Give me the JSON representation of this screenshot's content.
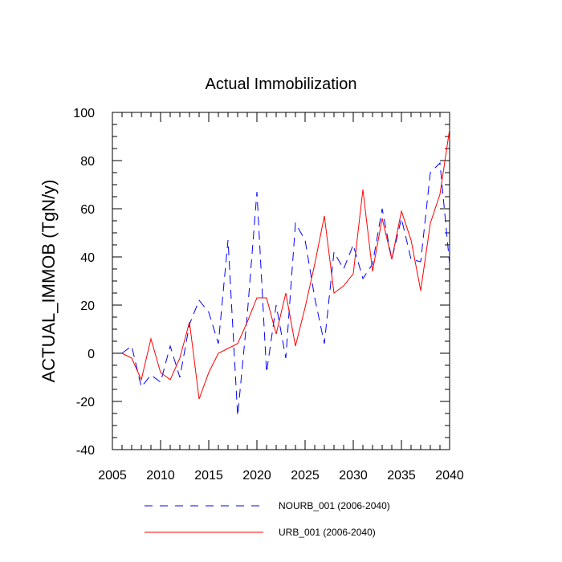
{
  "chart_data": {
    "type": "line",
    "title": "Actual Immobilization",
    "xlabel": "",
    "ylabel": "ACTUAL_IMMOB  (TgN/y)",
    "xlim": [
      2005,
      2040
    ],
    "ylim": [
      -40,
      100
    ],
    "x_ticks": [
      2005,
      2010,
      2015,
      2020,
      2025,
      2030,
      2035,
      2040
    ],
    "y_ticks": [
      -40,
      -20,
      0,
      20,
      40,
      60,
      80,
      100
    ],
    "x_tick_labels": [
      "2005",
      "2010",
      "2015",
      "2020",
      "2025",
      "2030",
      "2035",
      "2040"
    ],
    "y_tick_labels": [
      "-40",
      "-20",
      "0",
      "20",
      "40",
      "60",
      "80",
      "100"
    ],
    "x": [
      2006,
      2007,
      2008,
      2009,
      2010,
      2011,
      2012,
      2013,
      2014,
      2015,
      2016,
      2017,
      2018,
      2019,
      2020,
      2021,
      2022,
      2023,
      2024,
      2025,
      2026,
      2027,
      2028,
      2029,
      2030,
      2031,
      2032,
      2033,
      2034,
      2035,
      2036,
      2037,
      2038,
      2039,
      2040
    ],
    "series": [
      {
        "name": "NOURB_001 (2006-2040)",
        "color": "#0000ff",
        "dash": "dashed",
        "values": [
          0,
          3,
          -14,
          -9,
          -12,
          3,
          -10,
          12,
          22,
          17,
          4,
          47,
          -26,
          16,
          67,
          -8,
          20,
          -2,
          54,
          47,
          23,
          4,
          42,
          35,
          45,
          31,
          37,
          60,
          39,
          56,
          39,
          38,
          75,
          79,
          37
        ]
      },
      {
        "name": "URB_001 (2006-2040)",
        "color": "#ff0000",
        "dash": "solid",
        "values": [
          0,
          -2,
          -11,
          6,
          -8,
          -11,
          -2,
          13,
          -19,
          -8,
          0,
          2,
          4,
          13,
          23,
          23,
          8,
          25,
          3,
          19,
          37,
          57,
          25,
          28,
          33,
          68,
          34,
          56,
          39,
          59,
          47,
          26,
          54,
          66,
          93
        ]
      }
    ]
  }
}
